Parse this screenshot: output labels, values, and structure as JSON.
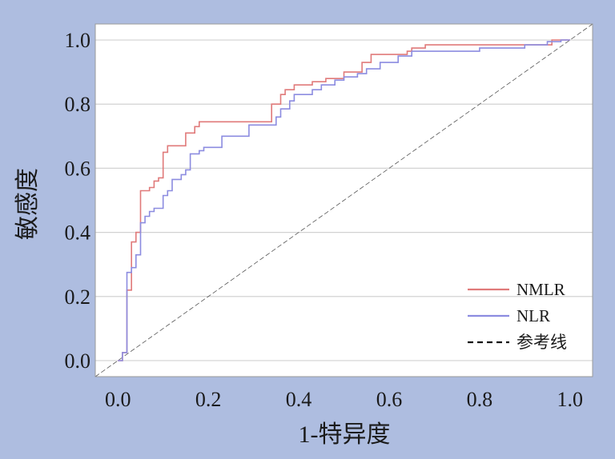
{
  "chart_data": {
    "type": "line",
    "title": "",
    "xlabel": "1-特异度",
    "ylabel": "敏感度",
    "xlim": [
      -0.05,
      1.05
    ],
    "ylim": [
      -0.05,
      1.05
    ],
    "xticks": [
      "0.0",
      "0.2",
      "0.4",
      "0.6",
      "0.8",
      "1.0"
    ],
    "yticks": [
      "0.0",
      "0.2",
      "0.4",
      "0.6",
      "0.8",
      "1.0"
    ],
    "grid": "horizontal",
    "legend_position": "bottom-right",
    "series": [
      {
        "name": "NMLR",
        "color": "#e07a7a",
        "points": [
          [
            0,
            0
          ],
          [
            0.01,
            0
          ],
          [
            0.01,
            0.025
          ],
          [
            0.02,
            0.025
          ],
          [
            0.02,
            0.22
          ],
          [
            0.03,
            0.22
          ],
          [
            0.03,
            0.37
          ],
          [
            0.04,
            0.37
          ],
          [
            0.04,
            0.4
          ],
          [
            0.05,
            0.4
          ],
          [
            0.05,
            0.53
          ],
          [
            0.07,
            0.53
          ],
          [
            0.07,
            0.54
          ],
          [
            0.08,
            0.54
          ],
          [
            0.08,
            0.56
          ],
          [
            0.09,
            0.56
          ],
          [
            0.09,
            0.57
          ],
          [
            0.1,
            0.57
          ],
          [
            0.1,
            0.65
          ],
          [
            0.11,
            0.65
          ],
          [
            0.11,
            0.67
          ],
          [
            0.15,
            0.67
          ],
          [
            0.15,
            0.71
          ],
          [
            0.17,
            0.71
          ],
          [
            0.17,
            0.73
          ],
          [
            0.18,
            0.73
          ],
          [
            0.18,
            0.745
          ],
          [
            0.34,
            0.745
          ],
          [
            0.34,
            0.8
          ],
          [
            0.36,
            0.8
          ],
          [
            0.36,
            0.83
          ],
          [
            0.37,
            0.83
          ],
          [
            0.37,
            0.845
          ],
          [
            0.39,
            0.845
          ],
          [
            0.39,
            0.86
          ],
          [
            0.43,
            0.86
          ],
          [
            0.43,
            0.87
          ],
          [
            0.46,
            0.87
          ],
          [
            0.46,
            0.88
          ],
          [
            0.5,
            0.88
          ],
          [
            0.5,
            0.9
          ],
          [
            0.54,
            0.9
          ],
          [
            0.54,
            0.93
          ],
          [
            0.56,
            0.93
          ],
          [
            0.56,
            0.955
          ],
          [
            0.64,
            0.955
          ],
          [
            0.64,
            0.965
          ],
          [
            0.65,
            0.965
          ],
          [
            0.65,
            0.975
          ],
          [
            0.68,
            0.975
          ],
          [
            0.68,
            0.985
          ],
          [
            0.96,
            0.985
          ],
          [
            0.96,
            1.0
          ],
          [
            1.0,
            1.0
          ]
        ]
      },
      {
        "name": "NLR",
        "color": "#8c8ce0",
        "points": [
          [
            0,
            0
          ],
          [
            0.01,
            0
          ],
          [
            0.01,
            0.025
          ],
          [
            0.02,
            0.025
          ],
          [
            0.02,
            0.275
          ],
          [
            0.03,
            0.275
          ],
          [
            0.03,
            0.29
          ],
          [
            0.04,
            0.29
          ],
          [
            0.04,
            0.33
          ],
          [
            0.05,
            0.33
          ],
          [
            0.05,
            0.43
          ],
          [
            0.06,
            0.43
          ],
          [
            0.06,
            0.45
          ],
          [
            0.07,
            0.45
          ],
          [
            0.07,
            0.465
          ],
          [
            0.08,
            0.465
          ],
          [
            0.08,
            0.475
          ],
          [
            0.1,
            0.475
          ],
          [
            0.1,
            0.515
          ],
          [
            0.11,
            0.515
          ],
          [
            0.11,
            0.53
          ],
          [
            0.12,
            0.53
          ],
          [
            0.12,
            0.565
          ],
          [
            0.14,
            0.565
          ],
          [
            0.14,
            0.58
          ],
          [
            0.15,
            0.58
          ],
          [
            0.15,
            0.595
          ],
          [
            0.16,
            0.595
          ],
          [
            0.16,
            0.645
          ],
          [
            0.18,
            0.645
          ],
          [
            0.18,
            0.655
          ],
          [
            0.19,
            0.655
          ],
          [
            0.19,
            0.665
          ],
          [
            0.23,
            0.665
          ],
          [
            0.23,
            0.7
          ],
          [
            0.29,
            0.7
          ],
          [
            0.29,
            0.735
          ],
          [
            0.35,
            0.735
          ],
          [
            0.35,
            0.76
          ],
          [
            0.36,
            0.76
          ],
          [
            0.36,
            0.785
          ],
          [
            0.38,
            0.785
          ],
          [
            0.38,
            0.81
          ],
          [
            0.39,
            0.81
          ],
          [
            0.39,
            0.83
          ],
          [
            0.43,
            0.83
          ],
          [
            0.43,
            0.845
          ],
          [
            0.45,
            0.845
          ],
          [
            0.45,
            0.86
          ],
          [
            0.48,
            0.86
          ],
          [
            0.48,
            0.875
          ],
          [
            0.5,
            0.875
          ],
          [
            0.5,
            0.885
          ],
          [
            0.53,
            0.885
          ],
          [
            0.53,
            0.895
          ],
          [
            0.55,
            0.895
          ],
          [
            0.55,
            0.91
          ],
          [
            0.58,
            0.91
          ],
          [
            0.58,
            0.93
          ],
          [
            0.62,
            0.93
          ],
          [
            0.62,
            0.95
          ],
          [
            0.65,
            0.95
          ],
          [
            0.65,
            0.965
          ],
          [
            0.8,
            0.965
          ],
          [
            0.8,
            0.975
          ],
          [
            0.9,
            0.975
          ],
          [
            0.9,
            0.985
          ],
          [
            0.95,
            0.985
          ],
          [
            0.95,
            0.995
          ],
          [
            0.98,
            0.995
          ],
          [
            0.98,
            1.0
          ],
          [
            1.0,
            1.0
          ]
        ]
      },
      {
        "name": "参考线",
        "color": "#555555",
        "dashed": true,
        "points": [
          [
            -0.05,
            -0.05
          ],
          [
            1.05,
            1.05
          ]
        ]
      }
    ]
  }
}
